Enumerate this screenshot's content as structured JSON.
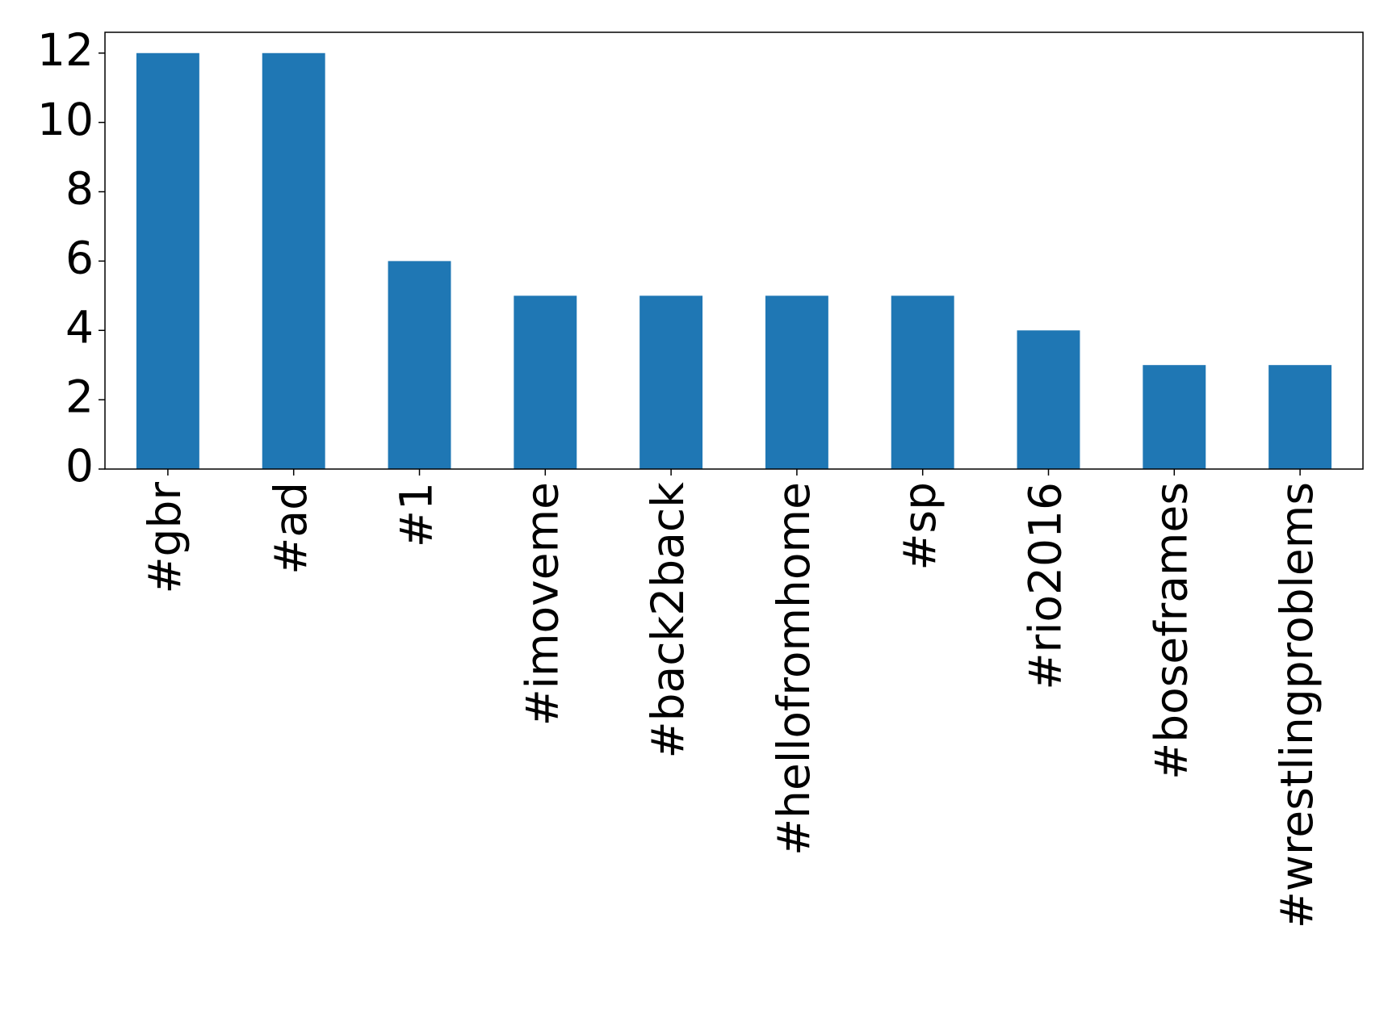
{
  "chart_data": {
    "type": "bar",
    "categories": [
      "#gbr",
      "#ad",
      "#1",
      "#imoveme",
      "#back2back",
      "#hellofromhome",
      "#sp",
      "#rio2016",
      "#boseframes",
      "#wrestlingproblems"
    ],
    "values": [
      12,
      12,
      6,
      5,
      5,
      5,
      5,
      4,
      3,
      3
    ],
    "color": "#1f77b4",
    "ylim": [
      0,
      12.6
    ],
    "yticks": [
      0,
      2,
      4,
      6,
      8,
      10,
      12
    ],
    "grid": false
  }
}
